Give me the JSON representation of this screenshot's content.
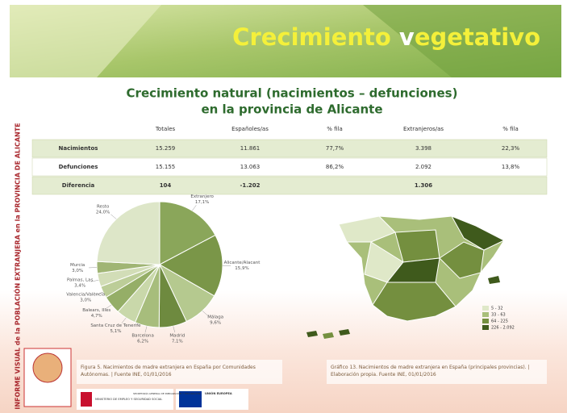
{
  "header": {
    "title_parts": [
      "Crecimiento ",
      "v",
      "egetativo"
    ]
  },
  "subtitle": [
    "Crecimiento natural (nacimientos – defunciones)",
    "en la provincia de Alicante"
  ],
  "side_text": "INFORME VISUAL de la POBLACIÓN EXTRANJERA en la PROVINCIA DE ALICANTE",
  "table": {
    "header": [
      "Totales",
      "Españoles/as",
      "% fila",
      "Extranjeros/as",
      "% fila"
    ],
    "rows": [
      [
        "Nacimientos",
        "15.259",
        "11.861",
        "77,7%",
        "3.398",
        "22,3%"
      ],
      [
        "Defunciones",
        "15.155",
        "13.063",
        "86,2%",
        "2.092",
        "13,8%"
      ],
      [
        "Diferencia",
        "104",
        "-1.202",
        null,
        "1.306",
        null
      ]
    ]
  },
  "chart_data": {
    "type": "pie",
    "categories": [
      "Extranjero",
      "Alicante/Alacant",
      "Málaga",
      "Madrid",
      "Barcelona",
      "Santa Cruz de Tenerife",
      "Balears, Illes",
      "Valencia/València",
      "Palmas, Las",
      "Murcia",
      "Resto"
    ],
    "values": [
      17.1,
      15.9,
      9.6,
      7.1,
      6.2,
      5.1,
      4.7,
      3.0,
      3.4,
      3.0,
      24.0
    ],
    "value_labels": [
      "17,1%",
      "15,9%",
      "9,6%",
      "7,1%",
      "6,2%",
      "5,1%",
      "4,7%",
      "3,0%",
      "3,4%",
      "3,0%",
      "24,0%"
    ],
    "colors": [
      "#8aa65a",
      "#7a9648",
      "#b5c98f",
      "#6e8a3f",
      "#a7bd7c",
      "#c9d8aa",
      "#95ae67",
      "#bccd98",
      "#d2ddb7",
      "#a0b574",
      "#dde6c8"
    ]
  },
  "map_legend": [
    {
      "label": "5 - 32",
      "color": "#dfe8c8"
    },
    {
      "label": "33 - 63",
      "color": "#a9bf7a"
    },
    {
      "label": "64 - 225",
      "color": "#748f3f"
    },
    {
      "label": "226 - 2.092",
      "color": "#3f5a1c"
    }
  ],
  "captions": [
    "Figura 5. Nacimientos de madre extranjera en España por Comunidades Autónomas. | Fuente INE, 01/01/2016",
    "Gráfico 13. Nacimientos de madre extranjera en España (principales provincias). | Elaboración propia. Fuente INE, 01/01/2016"
  ],
  "logos": [
    "MINISTERIO DE EMPLEO Y SEGURIDAD SOCIAL",
    "SECRETARÍA GENERAL DE INMIGRACIÓN Y EMIGRACIÓN",
    "UNIÓN EUROPEA"
  ]
}
